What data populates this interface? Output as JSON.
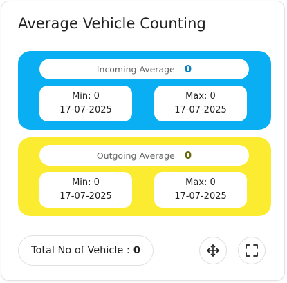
{
  "widget": {
    "title": "Average Vehicle Counting"
  },
  "incoming": {
    "color": "#0aaef2",
    "value_color": "#0a7fc0",
    "label": "Incoming Average",
    "value": "0",
    "min_label": "Min: 0",
    "min_date": "17-07-2025",
    "max_label": "Max: 0",
    "max_date": "17-07-2025"
  },
  "outgoing": {
    "color": "#fbec31",
    "value_color": "#6b6b10",
    "label": "Outgoing Average",
    "value": "0",
    "min_label": "Min: 0",
    "min_date": "17-07-2025",
    "max_label": "Max: 0",
    "max_date": "17-07-2025"
  },
  "footer": {
    "total_label": "Total No of Vehicle :",
    "total_value": "0",
    "move_icon": "move-icon",
    "expand_icon": "expand-icon"
  }
}
